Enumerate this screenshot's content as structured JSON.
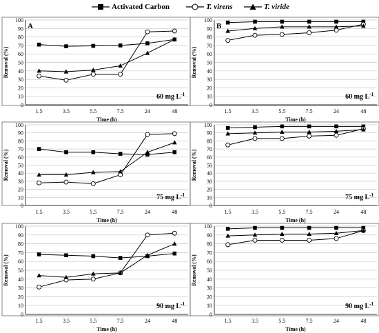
{
  "legend": {
    "items": [
      {
        "name": "Activated Carbon",
        "marker": "square-filled",
        "italic": false
      },
      {
        "name": "T. virens",
        "marker": "circle-open",
        "italic": true
      },
      {
        "name": "T. viride",
        "marker": "triangle-filled",
        "italic": true
      }
    ]
  },
  "chart_data": [
    {
      "type": "line",
      "panel_label": "A",
      "annotation": "60 mg L⁻¹",
      "xlabel": "Time (h)",
      "ylabel": "Removal (%)",
      "categories": [
        "1.5",
        "3.5",
        "5.5",
        "7.5",
        "24",
        "48"
      ],
      "ylim": [
        0,
        100
      ],
      "yticks": [
        0,
        10,
        20,
        30,
        40,
        50,
        60,
        70,
        80,
        90,
        100
      ],
      "grid": true,
      "series": [
        {
          "name": "Activated Carbon",
          "values": [
            71,
            69,
            69.5,
            70,
            72.5,
            77
          ]
        },
        {
          "name": "T. virens",
          "values": [
            34,
            29,
            36,
            36,
            86,
            87
          ]
        },
        {
          "name": "T. viride",
          "values": [
            40,
            39,
            41,
            46,
            61,
            77
          ]
        }
      ]
    },
    {
      "type": "line",
      "panel_label": "B",
      "annotation": "60 mg L⁻¹",
      "xlabel": "Time (h)",
      "ylabel": "Removal (%)",
      "categories": [
        "1.5",
        "3.5",
        "5.5",
        "7.5",
        "24",
        "48"
      ],
      "ylim": [
        0,
        100
      ],
      "yticks": [
        0,
        10,
        20,
        30,
        40,
        50,
        60,
        70,
        80,
        90,
        100
      ],
      "grid": true,
      "series": [
        {
          "name": "Activated Carbon",
          "values": [
            97,
            98,
            98,
            98,
            98,
            98
          ]
        },
        {
          "name": "T. virens",
          "values": [
            76,
            82,
            83,
            85,
            88,
            95
          ]
        },
        {
          "name": "T. viride",
          "values": [
            87,
            90,
            92,
            92,
            92,
            93
          ]
        }
      ]
    },
    {
      "type": "line",
      "panel_label": "",
      "annotation": "75 mg L⁻¹",
      "xlabel": "Time (h)",
      "ylabel": "Removal (%)",
      "categories": [
        "1.5",
        "3.5",
        "5.5",
        "7.5",
        "24",
        "48"
      ],
      "ylim": [
        0,
        100
      ],
      "yticks": [
        0,
        10,
        20,
        30,
        40,
        50,
        60,
        70,
        80,
        90,
        100
      ],
      "grid": true,
      "series": [
        {
          "name": "Activated Carbon",
          "values": [
            70,
            66,
            66,
            64,
            63,
            66
          ]
        },
        {
          "name": "T. virens",
          "values": [
            28,
            29,
            27,
            38,
            88,
            89
          ]
        },
        {
          "name": "T. viride",
          "values": [
            38,
            38,
            41,
            42,
            66,
            78
          ]
        }
      ]
    },
    {
      "type": "line",
      "panel_label": "",
      "annotation": "75 mg L⁻¹",
      "xlabel": "Time (h)",
      "ylabel": "Removal (%)",
      "categories": [
        "1.5",
        "3.5",
        "5.5",
        "7.5",
        "24",
        "48"
      ],
      "ylim": [
        0,
        100
      ],
      "yticks": [
        0,
        10,
        20,
        30,
        40,
        50,
        60,
        70,
        80,
        90,
        100
      ],
      "grid": true,
      "series": [
        {
          "name": "Activated Carbon",
          "values": [
            96,
            97,
            98,
            98,
            98,
            98
          ]
        },
        {
          "name": "T. virens",
          "values": [
            75,
            83,
            83,
            86,
            87,
            95
          ]
        },
        {
          "name": "T. viride",
          "values": [
            89,
            90,
            91,
            91,
            92,
            94
          ]
        }
      ]
    },
    {
      "type": "line",
      "panel_label": "",
      "annotation": "90 mg L⁻¹",
      "xlabel": "Time (h)",
      "ylabel": "Removal (%)",
      "categories": [
        "1.5",
        "3.5",
        "5.5",
        "7.5",
        "24",
        "48"
      ],
      "ylim": [
        0,
        100
      ],
      "yticks": [
        0,
        10,
        20,
        30,
        40,
        50,
        60,
        70,
        80,
        90,
        100
      ],
      "grid": true,
      "series": [
        {
          "name": "Activated Carbon",
          "values": [
            68,
            67,
            66,
            64,
            66,
            69
          ]
        },
        {
          "name": "T. virens",
          "values": [
            31,
            39,
            40,
            47,
            90,
            92
          ]
        },
        {
          "name": "T. viride",
          "values": [
            44,
            42,
            46,
            47,
            67,
            80
          ]
        }
      ]
    },
    {
      "type": "line",
      "panel_label": "",
      "annotation": "90 mg L⁻¹",
      "xlabel": "Time (h)",
      "ylabel": "Removal (%)",
      "categories": [
        "1.5",
        "3.5",
        "5.5",
        "7.5",
        "24",
        "48"
      ],
      "ylim": [
        0,
        100
      ],
      "yticks": [
        0,
        10,
        20,
        30,
        40,
        50,
        60,
        70,
        80,
        90,
        100
      ],
      "grid": true,
      "series": [
        {
          "name": "Activated Carbon",
          "values": [
            97,
            98,
            98,
            98,
            98,
            98
          ]
        },
        {
          "name": "T. virens",
          "values": [
            79,
            84,
            84,
            84,
            86,
            95
          ]
        },
        {
          "name": "T. viride",
          "values": [
            89,
            90,
            91,
            91,
            92,
            95
          ]
        }
      ]
    }
  ]
}
